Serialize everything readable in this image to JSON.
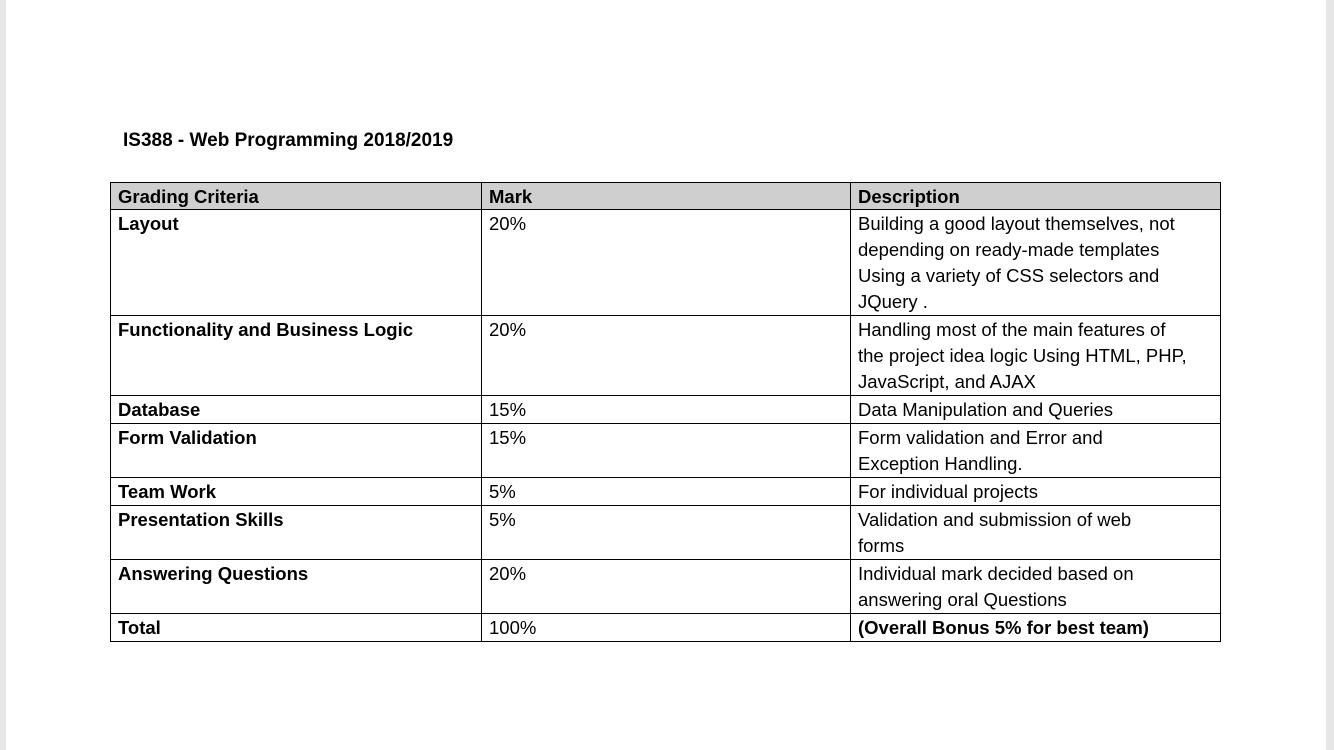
{
  "document": {
    "title": "IS388 - Web Programming 2018/2019"
  },
  "table": {
    "headers": [
      "Grading Criteria",
      "Mark",
      "Description"
    ],
    "rows": [
      {
        "criteria": "Layout",
        "mark": "20%",
        "description": [
          "Building a good layout themselves, not",
          "depending on ready-made templates",
          "Using a variety of CSS selectors and",
          "JQuery ."
        ]
      },
      {
        "criteria": "Functionality and Business Logic",
        "mark": "20%",
        "description": [
          "Handling most of the main features of",
          "the project idea logic Using HTML, PHP,",
          "JavaScript, and AJAX"
        ]
      },
      {
        "criteria": "Database",
        "mark": "15%",
        "description": [
          "Data Manipulation and Queries"
        ]
      },
      {
        "criteria": "Form Validation",
        "mark": "15%",
        "description": [
          "Form validation and Error and",
          "Exception Handling."
        ]
      },
      {
        "criteria": "Team Work",
        "mark": "5%",
        "description": [
          "For individual projects"
        ]
      },
      {
        "criteria": "Presentation Skills",
        "mark": "5%",
        "description": [
          "Validation and submission of web",
          "forms"
        ]
      },
      {
        "criteria": "Answering Questions",
        "mark": "20%",
        "description": [
          "Individual mark decided based on",
          "answering oral Questions"
        ]
      },
      {
        "criteria": "Total",
        "mark": "100%",
        "description": [
          "(Overall Bonus 5% for best team)"
        ]
      }
    ]
  }
}
